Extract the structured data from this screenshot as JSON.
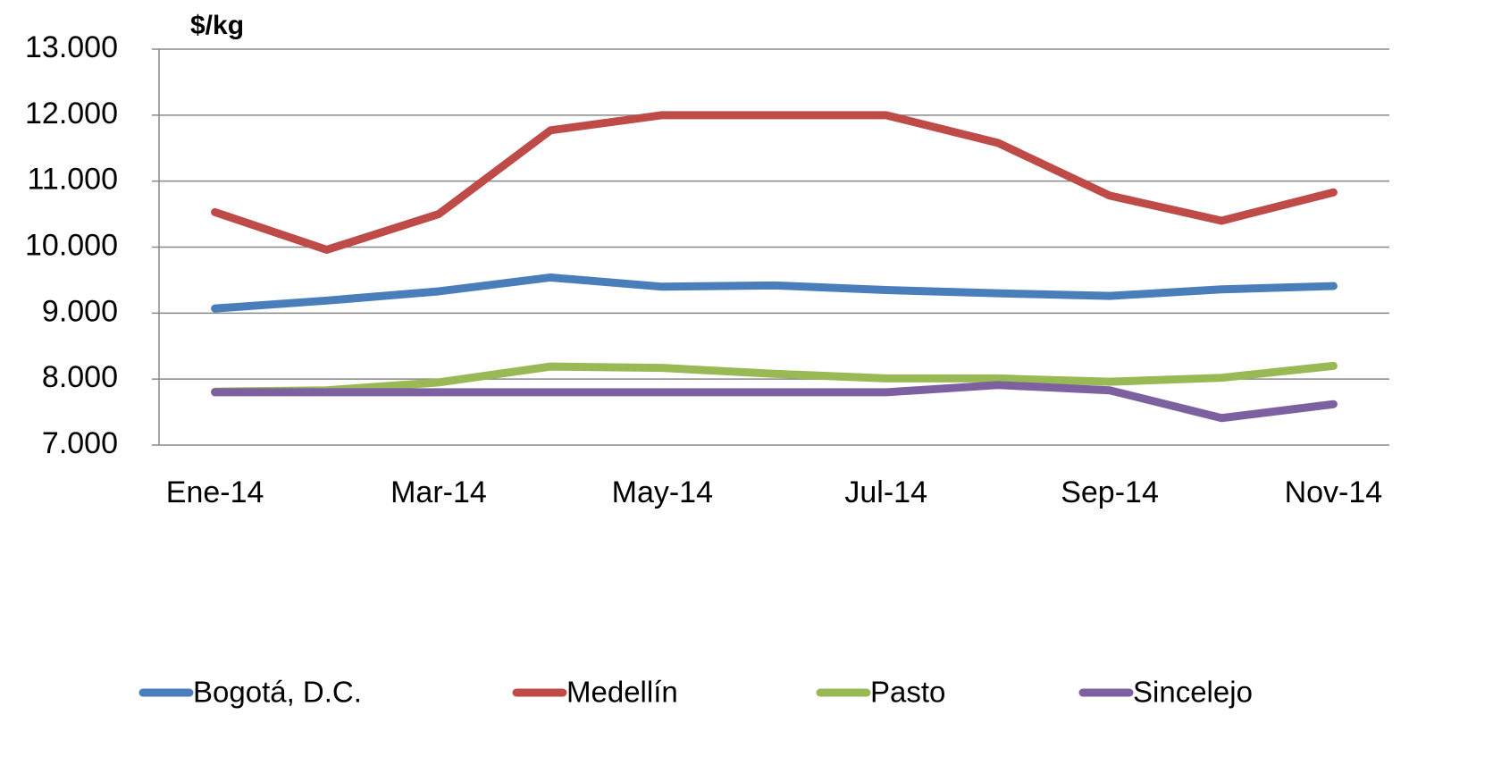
{
  "chart_data": {
    "type": "line",
    "y_label": "$/kg",
    "categories": [
      "Ene-14",
      null,
      "Mar-14",
      null,
      "May-14",
      null,
      "Jul-14",
      null,
      "Sep-14",
      null,
      "Nov-14"
    ],
    "series": [
      {
        "name": "Bogotá, D.C.",
        "color": "#4a7ebb",
        "values": [
          9070,
          9190,
          9330,
          9540,
          9400,
          9420,
          9350,
          9300,
          9260,
          9360,
          9410
        ]
      },
      {
        "name": "Medellín",
        "color": "#be4b48",
        "values": [
          10530,
          9960,
          10500,
          11770,
          12000,
          12000,
          12000,
          11580,
          10780,
          10400,
          10830
        ]
      },
      {
        "name": "Pasto",
        "color": "#98b954",
        "values": [
          7810,
          7830,
          7950,
          8190,
          8170,
          8080,
          8010,
          8010,
          7960,
          8020,
          8200
        ]
      },
      {
        "name": "Sincelejo",
        "color": "#7d60a0",
        "values": [
          7800,
          7800,
          7800,
          7800,
          7800,
          7800,
          7800,
          7910,
          7830,
          7410,
          7620
        ]
      }
    ],
    "ylim": [
      7000,
      13000
    ],
    "yticks": [
      {
        "value": 7000,
        "label": "7.000"
      },
      {
        "value": 8000,
        "label": "8.000"
      },
      {
        "value": 9000,
        "label": "9.000"
      },
      {
        "value": 10000,
        "label": "10.000"
      },
      {
        "value": 11000,
        "label": "11.000"
      },
      {
        "value": 12000,
        "label": "12.000"
      },
      {
        "value": 13000,
        "label": "13.000"
      }
    ],
    "grid": true,
    "legend": "bottom"
  }
}
